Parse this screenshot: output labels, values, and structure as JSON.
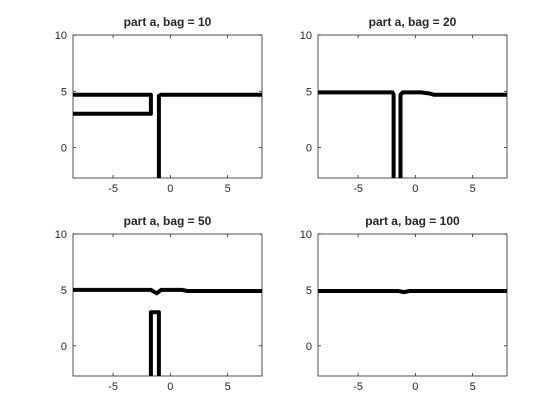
{
  "chart_data": [
    {
      "type": "line",
      "title": "part a, bag = 10",
      "xlim": [
        -8.5,
        8
      ],
      "ylim": [
        -2.7,
        10
      ],
      "xticks": [
        -5,
        0,
        5
      ],
      "yticks": [
        0,
        5,
        10
      ],
      "xtick_labels": [
        "-5",
        "0",
        "5"
      ],
      "ytick_labels": [
        "0",
        "5",
        "10"
      ],
      "grid": false,
      "series": [
        {
          "x": [
            -8.5,
            -1.7,
            -1.7,
            -8.5
          ],
          "y": [
            4.7,
            4.7,
            3.0,
            3.0
          ]
        },
        {
          "x": [
            -1.0,
            -1.0,
            -0.8,
            8.0
          ],
          "y": [
            -2.7,
            4.6,
            4.7,
            4.7
          ]
        }
      ]
    },
    {
      "type": "line",
      "title": "part a, bag = 20",
      "xlim": [
        -8.5,
        8
      ],
      "ylim": [
        -2.7,
        10
      ],
      "xticks": [
        -5,
        0,
        5
      ],
      "yticks": [
        0,
        5,
        10
      ],
      "xtick_labels": [
        "-5",
        "0",
        "5"
      ],
      "ytick_labels": [
        "0",
        "5",
        "10"
      ],
      "grid": false,
      "series": [
        {
          "x": [
            -8.5,
            -2.0,
            -1.9,
            -1.9
          ],
          "y": [
            4.9,
            4.9,
            4.7,
            -2.7
          ]
        },
        {
          "x": [
            -1.3,
            -1.3,
            -1.1,
            0.5,
            1.3,
            1.6,
            8.0
          ],
          "y": [
            -2.7,
            4.7,
            4.9,
            4.9,
            4.8,
            4.7,
            4.7
          ]
        }
      ]
    },
    {
      "type": "line",
      "title": "part a, bag = 50",
      "xlim": [
        -8.5,
        8
      ],
      "ylim": [
        -2.7,
        10
      ],
      "xticks": [
        -5,
        0,
        5
      ],
      "yticks": [
        0,
        5,
        10
      ],
      "xtick_labels": [
        "-5",
        "0",
        "5"
      ],
      "ytick_labels": [
        "0",
        "5",
        "10"
      ],
      "grid": false,
      "series": [
        {
          "x": [
            -8.5,
            -1.7,
            -1.2,
            -0.8,
            1.0,
            1.5,
            8.0
          ],
          "y": [
            5.0,
            5.0,
            4.7,
            5.0,
            5.0,
            4.9,
            4.9
          ]
        },
        {
          "x": [
            -1.7,
            -1.7,
            -1.0,
            -1.0
          ],
          "y": [
            -2.7,
            3.0,
            3.0,
            -2.7
          ]
        }
      ]
    },
    {
      "type": "line",
      "title": "part a, bag = 100",
      "xlim": [
        -8.5,
        8
      ],
      "ylim": [
        -2.7,
        10
      ],
      "xticks": [
        -5,
        0,
        5
      ],
      "yticks": [
        0,
        5,
        10
      ],
      "xtick_labels": [
        "-5",
        "0",
        "5"
      ],
      "ytick_labels": [
        "0",
        "5",
        "10"
      ],
      "grid": false,
      "series": [
        {
          "x": [
            -8.5,
            -1.5,
            -1.0,
            -0.5,
            8.0
          ],
          "y": [
            4.9,
            4.9,
            4.8,
            4.9,
            4.9
          ]
        }
      ]
    }
  ],
  "colors": {
    "line": "#000000",
    "axes": "#262626"
  }
}
